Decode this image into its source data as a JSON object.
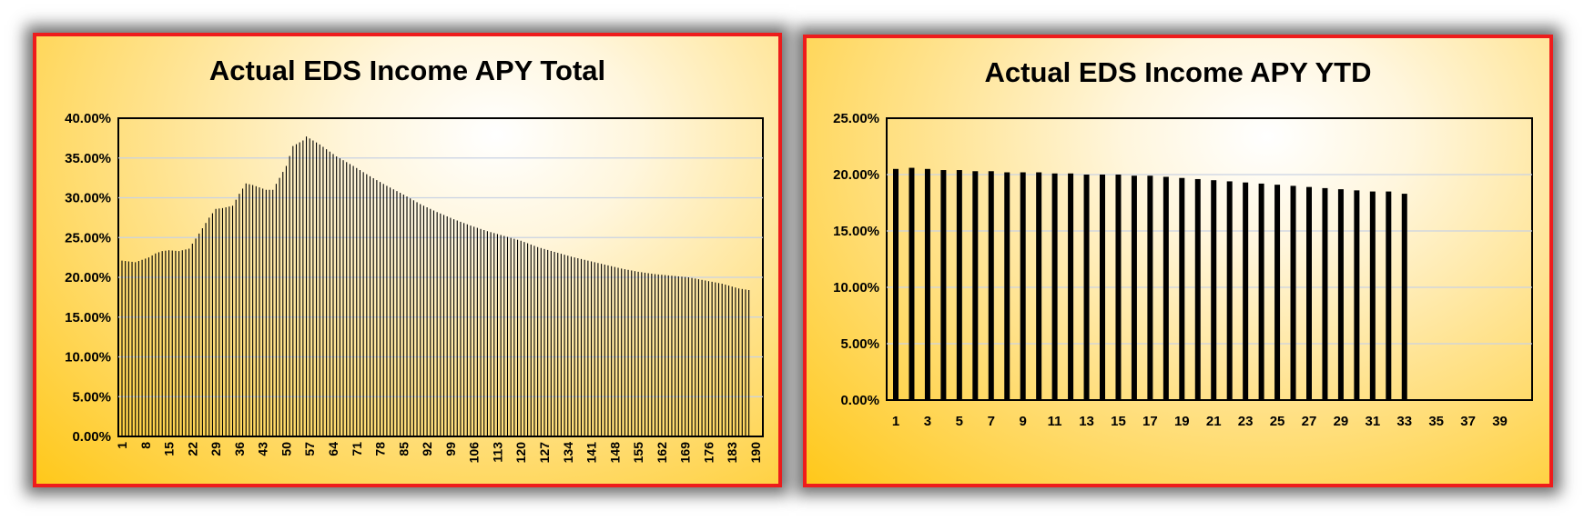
{
  "chart_data": [
    {
      "type": "bar",
      "title": "Actual EDS Income APY Total",
      "xlabel": "",
      "ylabel": "",
      "ylim": [
        0,
        0.4
      ],
      "x_range": [
        1,
        190
      ],
      "grid": true,
      "legend": "none",
      "y_ticks": [
        "0.00%",
        "5.00%",
        "10.00%",
        "15.00%",
        "20.00%",
        "25.00%",
        "30.00%",
        "35.00%",
        "40.00%"
      ],
      "x_ticks": [
        "1",
        "8",
        "15",
        "22",
        "29",
        "36",
        "43",
        "50",
        "57",
        "64",
        "71",
        "78",
        "85",
        "92",
        "99",
        "106",
        "113",
        "120",
        "127",
        "134",
        "141",
        "148",
        "155",
        "162",
        "169",
        "176",
        "183",
        "190"
      ],
      "x_tick_values": [
        1,
        8,
        15,
        22,
        29,
        36,
        43,
        50,
        57,
        64,
        71,
        78,
        85,
        92,
        99,
        106,
        113,
        120,
        127,
        134,
        141,
        148,
        155,
        162,
        169,
        176,
        183,
        190
      ],
      "value_anchors": [
        [
          1,
          0.221
        ],
        [
          3,
          0.22
        ],
        [
          5,
          0.219
        ],
        [
          7,
          0.222
        ],
        [
          9,
          0.225
        ],
        [
          11,
          0.23
        ],
        [
          13,
          0.233
        ],
        [
          15,
          0.234
        ],
        [
          18,
          0.233
        ],
        [
          21,
          0.236
        ],
        [
          24,
          0.255
        ],
        [
          27,
          0.275
        ],
        [
          29,
          0.286
        ],
        [
          31,
          0.287
        ],
        [
          34,
          0.29
        ],
        [
          36,
          0.305
        ],
        [
          38,
          0.318
        ],
        [
          40,
          0.316
        ],
        [
          44,
          0.31
        ],
        [
          46,
          0.31
        ],
        [
          48,
          0.325
        ],
        [
          50,
          0.34
        ],
        [
          52,
          0.365
        ],
        [
          55,
          0.372
        ],
        [
          56,
          0.377
        ],
        [
          60,
          0.367
        ],
        [
          65,
          0.352
        ],
        [
          70,
          0.34
        ],
        [
          75,
          0.327
        ],
        [
          80,
          0.315
        ],
        [
          85,
          0.304
        ],
        [
          90,
          0.292
        ],
        [
          95,
          0.282
        ],
        [
          100,
          0.273
        ],
        [
          105,
          0.265
        ],
        [
          110,
          0.258
        ],
        [
          115,
          0.252
        ],
        [
          120,
          0.246
        ],
        [
          125,
          0.238
        ],
        [
          130,
          0.232
        ],
        [
          135,
          0.226
        ],
        [
          140,
          0.221
        ],
        [
          145,
          0.216
        ],
        [
          150,
          0.211
        ],
        [
          155,
          0.207
        ],
        [
          160,
          0.204
        ],
        [
          165,
          0.202
        ],
        [
          170,
          0.2
        ],
        [
          175,
          0.196
        ],
        [
          180,
          0.192
        ],
        [
          185,
          0.186
        ],
        [
          188,
          0.184
        ]
      ],
      "bar_count": 188,
      "bar_color": "#000000"
    },
    {
      "type": "bar",
      "title": "Actual EDS Income APY YTD",
      "xlabel": "",
      "ylabel": "",
      "ylim": [
        0,
        0.25
      ],
      "x_range": [
        1,
        40
      ],
      "grid": true,
      "legend": "none",
      "y_ticks": [
        "0.00%",
        "5.00%",
        "10.00%",
        "15.00%",
        "20.00%",
        "25.00%"
      ],
      "x_ticks": [
        "1",
        "3",
        "5",
        "7",
        "9",
        "11",
        "13",
        "15",
        "17",
        "19",
        "21",
        "23",
        "25",
        "27",
        "29",
        "31",
        "33",
        "35",
        "37",
        "39"
      ],
      "categories": [
        1,
        2,
        3,
        4,
        5,
        6,
        7,
        8,
        9,
        10,
        11,
        12,
        13,
        14,
        15,
        16,
        17,
        18,
        19,
        20,
        21,
        22,
        23,
        24,
        25,
        26,
        27,
        28,
        29,
        30,
        31,
        32,
        33,
        34,
        35,
        36,
        37,
        38,
        39,
        40
      ],
      "values": [
        0.205,
        0.206,
        0.205,
        0.204,
        0.204,
        0.203,
        0.203,
        0.202,
        0.202,
        0.202,
        0.201,
        0.201,
        0.2,
        0.2,
        0.2,
        0.199,
        0.199,
        0.198,
        0.197,
        0.196,
        0.195,
        0.194,
        0.193,
        0.192,
        0.191,
        0.19,
        0.189,
        0.188,
        0.187,
        0.186,
        0.185,
        0.185,
        0.183,
        null,
        null,
        null,
        null,
        null,
        null,
        null
      ],
      "bar_color": "#000000"
    }
  ]
}
